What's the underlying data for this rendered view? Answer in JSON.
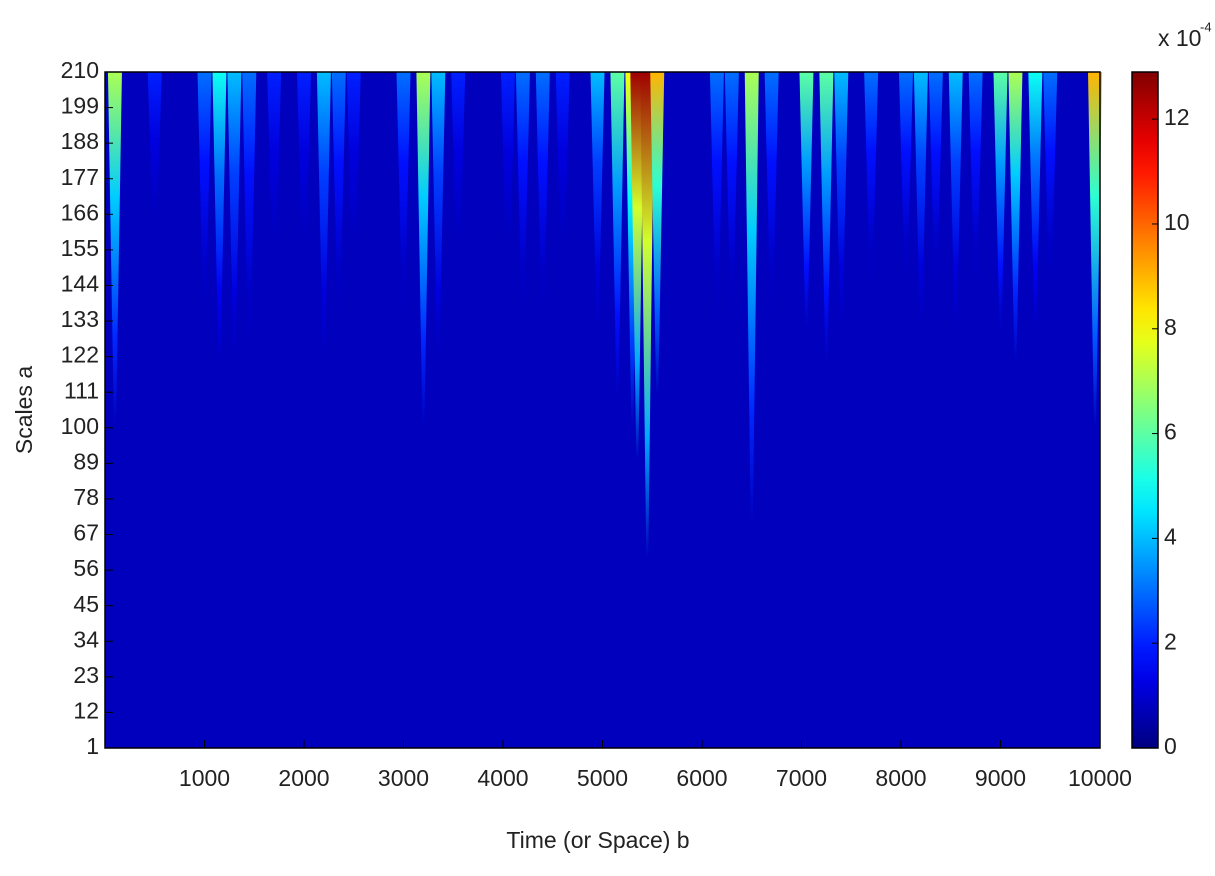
{
  "chart_data": {
    "type": "heatmap",
    "x_label": "Time (or Space) b",
    "y_label": "Scales a",
    "xlim": [
      0,
      10000
    ],
    "xticks": [
      1000,
      2000,
      3000,
      4000,
      5000,
      6000,
      7000,
      8000,
      9000,
      10000
    ],
    "ylim": [
      1,
      210
    ],
    "yticks": [
      1,
      12,
      23,
      34,
      45,
      56,
      67,
      78,
      89,
      100,
      111,
      122,
      133,
      144,
      155,
      166,
      177,
      188,
      199,
      210
    ],
    "colorbar_label": "x 10",
    "colorbar_exponent": "-4",
    "clim": [
      0,
      12.9
    ],
    "colorbar_ticks": [
      0,
      2,
      4,
      6,
      8,
      10,
      12
    ],
    "colormap": "jet",
    "ridges": {
      "x": [
        100,
        500,
        1000,
        1150,
        1300,
        1450,
        1700,
        2000,
        2200,
        2350,
        2500,
        3000,
        3200,
        3350,
        3550,
        4050,
        4200,
        4400,
        4600,
        4950,
        5150,
        5300,
        5350,
        5450,
        5550,
        6150,
        6300,
        6500,
        6700,
        7050,
        7250,
        7400,
        7700,
        8050,
        8200,
        8350,
        8550,
        8750,
        9000,
        9150,
        9350,
        9500,
        9950
      ],
      "values": [
        7,
        2,
        3,
        5,
        4,
        3,
        2,
        2,
        4,
        3,
        2,
        3,
        7,
        4,
        2,
        2,
        3,
        3,
        2,
        4,
        6,
        8,
        12.5,
        12.5,
        9,
        3,
        3,
        7,
        3,
        6,
        6,
        4,
        3,
        3,
        4,
        3,
        4,
        3,
        6,
        7,
        5,
        3,
        9
      ],
      "extent": [
        100,
        150,
        130,
        120,
        120,
        120,
        140,
        140,
        120,
        130,
        140,
        130,
        100,
        120,
        140,
        140,
        130,
        130,
        140,
        130,
        110,
        100,
        90,
        60,
        110,
        130,
        130,
        70,
        130,
        130,
        120,
        130,
        140,
        140,
        130,
        140,
        130,
        140,
        130,
        120,
        130,
        140,
        100
      ]
    }
  }
}
